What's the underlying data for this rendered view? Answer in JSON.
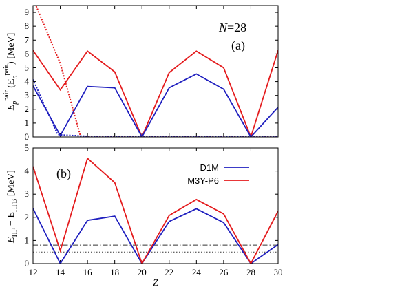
{
  "chart_data": [
    {
      "type": "line",
      "panel_label": "(a)",
      "annotation": {
        "italic": "N",
        "rest": "=28"
      },
      "ylabel": {
        "main": "E",
        "sub": "p",
        "sup": "pair",
        "open": " (E",
        "sub2": "n",
        "sup2": "pair",
        "close": ") [MeV]"
      },
      "xlim": [
        12,
        30
      ],
      "ylim": [
        0,
        9.5
      ],
      "yticks": [
        0,
        1,
        2,
        3,
        4,
        5,
        6,
        7,
        8,
        9
      ],
      "xticks": [
        12,
        14,
        16,
        18,
        20,
        22,
        24,
        26,
        28,
        30
      ],
      "series": [
        {
          "color": "#e41a1c",
          "dash": "solid",
          "x": [
            12,
            14,
            16,
            18,
            20,
            22,
            24,
            26,
            28,
            30
          ],
          "y": [
            6.25,
            3.4,
            6.2,
            4.7,
            0.0,
            4.65,
            6.2,
            5.0,
            0.0,
            6.25
          ]
        },
        {
          "color": "#1f1fbf",
          "dash": "solid",
          "x": [
            12,
            14,
            16,
            18,
            20,
            22,
            24,
            26,
            28,
            30
          ],
          "y": [
            3.7,
            0.1,
            3.65,
            3.55,
            0.0,
            3.55,
            4.55,
            3.45,
            0.0,
            2.15
          ]
        },
        {
          "color": "#e41a1c",
          "dash": "dotted",
          "x": [
            12,
            14,
            15.5,
            16,
            20,
            22,
            24,
            26,
            28,
            30
          ],
          "y": [
            10.0,
            5.3,
            0.0,
            0.0,
            0.0,
            0.0,
            0.0,
            0.0,
            0.0,
            0.0
          ]
        },
        {
          "color": "#1f1fbf",
          "dash": "dotted",
          "x": [
            12,
            13.8,
            14,
            16,
            18,
            20,
            22,
            24,
            26,
            28,
            30
          ],
          "y": [
            4.15,
            0.2,
            0.15,
            0.05,
            0.0,
            0.0,
            0.0,
            0.0,
            0.0,
            0.0,
            0.0
          ]
        }
      ]
    },
    {
      "type": "line",
      "panel_label": "(b)",
      "ylabel": {
        "a": "E",
        "asub": "HF",
        "mid": " − E",
        "bsub": "HFB",
        "unit": " [MeV]"
      },
      "xlabel": "Z",
      "xlim": [
        12,
        30
      ],
      "ylim": [
        0,
        5
      ],
      "yticks": [
        0,
        1,
        2,
        3,
        4,
        5
      ],
      "xticks": [
        12,
        14,
        16,
        18,
        20,
        22,
        24,
        26,
        28,
        30
      ],
      "legend": {
        "position": "top-right",
        "entries": [
          {
            "name": "D1M",
            "color": "#1f1fbf"
          },
          {
            "name": "M3Y-P6",
            "color": "#e41a1c"
          }
        ]
      },
      "series": [
        {
          "name": "D1M",
          "color": "#1f1fbf",
          "x": [
            12,
            14,
            16,
            18,
            20,
            22,
            24,
            26,
            28,
            30
          ],
          "y": [
            2.38,
            0.0,
            1.87,
            2.05,
            0.0,
            1.82,
            2.37,
            1.77,
            0.0,
            0.82
          ]
        },
        {
          "name": "M3Y-P6",
          "color": "#e41a1c",
          "x": [
            12,
            14,
            16,
            18,
            20,
            22,
            24,
            26,
            28,
            30
          ],
          "y": [
            4.2,
            0.55,
            4.55,
            3.5,
            0.0,
            2.08,
            2.77,
            2.15,
            0.0,
            2.27
          ]
        }
      ],
      "reference_lines": [
        {
          "y": 0.8,
          "style": "dash-dot"
        },
        {
          "y": 0.5,
          "style": "dotted"
        }
      ]
    }
  ]
}
